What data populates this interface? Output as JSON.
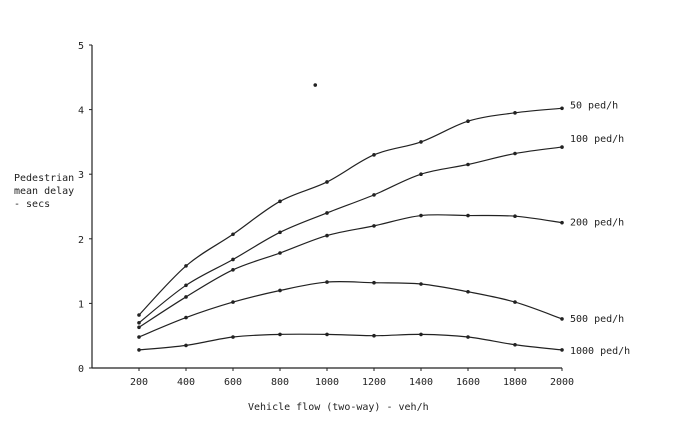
{
  "chart_data": {
    "type": "line",
    "ylabel": [
      "Pedestrian",
      "mean delay",
      "- secs"
    ],
    "xlabel": "Vehicle flow (two-way) - veh/h",
    "x_ticks": [
      200,
      400,
      600,
      800,
      1000,
      1200,
      1400,
      1600,
      1800,
      2000
    ],
    "y_ticks": [
      0,
      1,
      2,
      3,
      4,
      5
    ],
    "xlim": [
      0,
      2000
    ],
    "ylim": [
      0,
      5
    ],
    "grid": false,
    "legend": "inline-right",
    "series": [
      {
        "name": "50 ped/h",
        "x": [
          200,
          400,
          600,
          800,
          1000,
          1200,
          1400,
          1600,
          1800,
          2000
        ],
        "y": [
          0.82,
          1.58,
          2.07,
          2.58,
          2.88,
          3.3,
          3.5,
          3.82,
          3.95,
          4.02
        ]
      },
      {
        "name": "100 ped/h",
        "x": [
          200,
          400,
          600,
          800,
          1000,
          1200,
          1400,
          1600,
          1800,
          2000
        ],
        "y": [
          0.7,
          1.28,
          1.68,
          2.1,
          2.4,
          2.68,
          3.0,
          3.15,
          3.32,
          3.42
        ]
      },
      {
        "name": "200 ped/h",
        "x": [
          200,
          400,
          600,
          800,
          1000,
          1200,
          1400,
          1600,
          1800,
          2000
        ],
        "y": [
          0.63,
          1.1,
          1.52,
          1.78,
          2.05,
          2.2,
          2.36,
          2.36,
          2.35,
          2.25
        ]
      },
      {
        "name": "500 ped/h",
        "x": [
          200,
          400,
          600,
          800,
          1000,
          1200,
          1400,
          1600,
          1800,
          2000
        ],
        "y": [
          0.48,
          0.78,
          1.02,
          1.2,
          1.33,
          1.32,
          1.3,
          1.18,
          1.02,
          0.76
        ]
      },
      {
        "name": "1000 ped/h",
        "x": [
          200,
          400,
          600,
          800,
          1000,
          1200,
          1400,
          1600,
          1800,
          2000
        ],
        "y": [
          0.28,
          0.35,
          0.48,
          0.52,
          0.52,
          0.5,
          0.52,
          0.48,
          0.36,
          0.28
        ]
      }
    ],
    "outlier_point": {
      "x": 950,
      "y": 4.38
    },
    "colors": {
      "ink": "#222222",
      "background": "#ffffff"
    }
  }
}
